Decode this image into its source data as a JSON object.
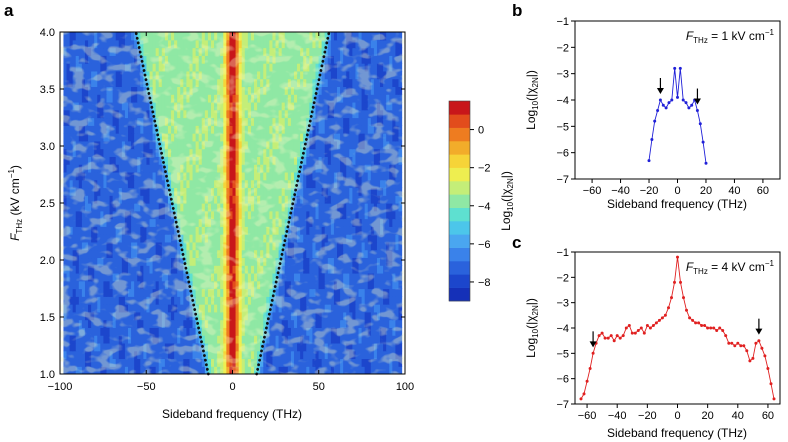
{
  "figure": {
    "panel_labels": [
      "a",
      "b",
      "c"
    ]
  },
  "colors": {
    "dots": "#111111",
    "line_b": "#2020d8",
    "line_c": "#e02020",
    "colormap": [
      "#1530b8",
      "#1c46cc",
      "#2a62dc",
      "#3a82ea",
      "#4aa6f0",
      "#4cc6ea",
      "#5ee0d0",
      "#8fe8a4",
      "#c4ee78",
      "#eeee50",
      "#f6d438",
      "#f2ac2a",
      "#ee7c20",
      "#e24c1c",
      "#c8161a"
    ]
  },
  "chart_data": [
    {
      "id": "a",
      "type": "heatmap",
      "title": "",
      "xlabel": "Sideband frequency (THz)",
      "ylabel": {
        "main": "F",
        "sub": "THz",
        "unit": " (kV cm",
        "sup": "−1",
        "close": ")"
      },
      "xlim": [
        -100,
        100
      ],
      "ylim": [
        1.0,
        4.0
      ],
      "data_xlim": [
        -98,
        98
      ],
      "xticks": [
        -100,
        -50,
        0,
        50,
        100
      ],
      "xtick_labels": [
        "−100",
        "−50",
        "0",
        "50",
        "100"
      ],
      "yticks": [
        1.0,
        1.5,
        2.0,
        2.5,
        3.0,
        3.5,
        4.0
      ],
      "ytick_labels": [
        "1.0",
        "1.5",
        "2.0",
        "2.5",
        "3.0",
        "3.5",
        "4.0"
      ],
      "dotted_lines": [
        {
          "name": "left-cutoff",
          "points": [
            [
              -14,
              1.0
            ],
            [
              -56,
              4.0
            ]
          ]
        },
        {
          "name": "right-cutoff",
          "points": [
            [
              14,
              1.0
            ],
            [
              56,
              4.0
            ]
          ]
        }
      ],
      "colorbar": {
        "range": [
          -9,
          1.5
        ],
        "ticks": [
          0,
          -2,
          -4,
          -6,
          -8
        ],
        "tick_labels": [
          "0",
          "−2",
          "−4",
          "−6",
          "−8"
        ],
        "label": {
          "pre": "Log",
          "sub": "10",
          "post": "(|χ",
          "sub2": "2N",
          "close": "|)"
        }
      }
    },
    {
      "id": "b",
      "type": "line",
      "annotation": {
        "pre": "F",
        "sub": "THz",
        "post": " = 1 kV cm",
        "sup": "−1"
      },
      "xlabel": "Sideband frequency (THz)",
      "ylabel": {
        "pre": "Log",
        "sub": "10",
        "post": "(|χ",
        "sub2": "2N",
        "close": "|)"
      },
      "xlim": [
        -72,
        72
      ],
      "ylim": [
        -7,
        -1
      ],
      "xticks": [
        -60,
        -40,
        -20,
        0,
        20,
        40,
        60
      ],
      "xtick_labels": [
        "−60",
        "−40",
        "−20",
        "0",
        "20",
        "40",
        "60"
      ],
      "yticks": [
        -1,
        -2,
        -3,
        -4,
        -5,
        -6,
        -7
      ],
      "ytick_labels": [
        "−1",
        "−2",
        "−3",
        "−4",
        "−5",
        "−6",
        "−7"
      ],
      "x": [
        -20,
        -18,
        -16,
        -14,
        -12,
        -10,
        -8,
        -6,
        -4,
        -2,
        0,
        2,
        4,
        6,
        8,
        10,
        12,
        14,
        16,
        18,
        20
      ],
      "y": [
        -6.3,
        -5.5,
        -4.8,
        -4.4,
        -4.0,
        -4.2,
        -4.3,
        -4.1,
        -4.0,
        -2.8,
        -3.9,
        -2.8,
        -4.0,
        -4.1,
        -4.3,
        -4.2,
        -4.0,
        -4.4,
        -4.9,
        -5.6,
        -6.4
      ],
      "arrows": [
        -12,
        14
      ]
    },
    {
      "id": "c",
      "type": "line",
      "annotation": {
        "pre": "F",
        "sub": "THz",
        "post": " = 4 kV cm",
        "sup": "−1"
      },
      "xlabel": "Sideband frequency (THz)",
      "ylabel": {
        "pre": "Log",
        "sub": "10",
        "post": "(|χ",
        "sub2": "2N",
        "close": "|)"
      },
      "xlim": [
        -68,
        68
      ],
      "ylim": [
        -7,
        -1
      ],
      "xticks": [
        -60,
        -40,
        -20,
        0,
        20,
        40,
        60
      ],
      "xtick_labels": [
        "−60",
        "−40",
        "−20",
        "0",
        "20",
        "40",
        "60"
      ],
      "yticks": [
        -1,
        -2,
        -3,
        -4,
        -5,
        -6,
        -7
      ],
      "ytick_labels": [
        "−1",
        "−2",
        "−3",
        "−4",
        "−5",
        "−6",
        "−7"
      ],
      "x": [
        -64,
        -62,
        -60,
        -58,
        -56,
        -54,
        -52,
        -50,
        -48,
        -46,
        -44,
        -42,
        -40,
        -38,
        -36,
        -34,
        -32,
        -30,
        -28,
        -26,
        -24,
        -22,
        -20,
        -18,
        -16,
        -14,
        -12,
        -10,
        -8,
        -6,
        -4,
        -2,
        0,
        2,
        4,
        6,
        8,
        10,
        12,
        14,
        16,
        18,
        20,
        22,
        24,
        26,
        28,
        30,
        32,
        34,
        36,
        38,
        40,
        42,
        44,
        46,
        48,
        50,
        52,
        54,
        56,
        58,
        60,
        62,
        64
      ],
      "y": [
        -6.8,
        -6.6,
        -6.1,
        -5.6,
        -5.0,
        -4.6,
        -4.3,
        -4.2,
        -4.4,
        -4.4,
        -4.3,
        -4.5,
        -4.3,
        -4.4,
        -4.3,
        -4.0,
        -3.9,
        -4.2,
        -4.2,
        -4.1,
        -4.0,
        -4.2,
        -3.9,
        -4.0,
        -3.9,
        -3.8,
        -3.7,
        -3.6,
        -3.5,
        -3.2,
        -2.8,
        -2.2,
        -1.2,
        -2.2,
        -2.8,
        -3.3,
        -3.6,
        -3.7,
        -3.8,
        -3.8,
        -3.9,
        -3.9,
        -4.0,
        -4.0,
        -4.0,
        -4.1,
        -4.0,
        -4.1,
        -4.3,
        -4.6,
        -4.6,
        -4.7,
        -4.6,
        -4.7,
        -4.7,
        -4.9,
        -5.3,
        -5.2,
        -4.6,
        -4.5,
        -4.8,
        -5.1,
        -5.6,
        -6.2,
        -6.8
      ],
      "arrows": [
        -56,
        54
      ]
    }
  ]
}
